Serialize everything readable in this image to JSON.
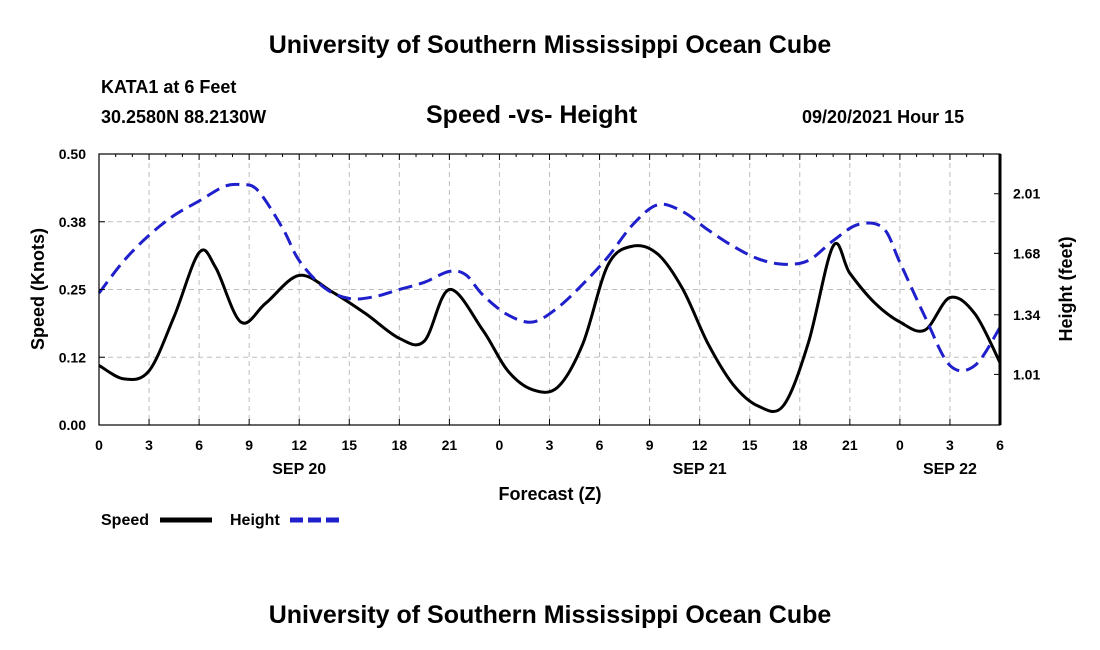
{
  "header": {
    "title": "University of Southern Mississippi Ocean Cube",
    "station": "KATA1 at 6 Feet",
    "coords": "30.2580N  88.2130W",
    "subtitle": "Speed -vs- Height",
    "datetime": "09/20/2021 Hour 15",
    "footer_title": "University of Southern Mississippi Ocean Cube"
  },
  "legend": {
    "speed_label": "Speed",
    "height_label": "Height"
  },
  "colors": {
    "speed": "#000000",
    "height": "#1f1fcc",
    "grid": "#bdbdbd"
  },
  "chart_data": {
    "type": "line",
    "xlabel": "Forecast (Z)",
    "ylabel": "Speed (Knots)",
    "ylabel_right": "Height (feet)",
    "xlim": [
      0,
      54
    ],
    "ylim": [
      0,
      0.5
    ],
    "ylim_right": [
      0.73,
      2.23
    ],
    "x_ticks": [
      "0",
      "3",
      "6",
      "9",
      "12",
      "15",
      "18",
      "21",
      "0",
      "3",
      "6",
      "9",
      "12",
      "15",
      "18",
      "21",
      "0",
      "3",
      "6"
    ],
    "y_ticks": [
      "0.00",
      "0.12",
      "0.25",
      "0.38",
      "0.50"
    ],
    "y_tick_values": [
      0,
      0.125,
      0.25,
      0.375,
      0.5
    ],
    "y_ticks_right": [
      "1.01",
      "1.34",
      "1.68",
      "2.01"
    ],
    "y_tick_values_right": [
      1.01,
      1.34,
      1.68,
      2.01
    ],
    "day_labels": [
      {
        "label": "SEP 20",
        "x": 12
      },
      {
        "label": "SEP 21",
        "x": 36
      },
      {
        "label": "SEP 22",
        "x": 51
      }
    ],
    "series": [
      {
        "name": "Speed",
        "axis": "left",
        "style": "solid",
        "x": [
          0,
          1.5,
          3,
          4.5,
          6,
          7,
          8.5,
          10,
          12,
          14,
          16,
          18,
          19.5,
          21,
          23,
          24.5,
          26,
          27.5,
          29,
          30.5,
          32,
          33.5,
          35,
          36.5,
          38,
          39.5,
          41,
          42.5,
          44,
          45,
          46.5,
          48,
          49.5,
          51,
          52.5,
          54
        ],
        "values": [
          0.11,
          0.085,
          0.1,
          0.2,
          0.318,
          0.29,
          0.19,
          0.225,
          0.276,
          0.245,
          0.205,
          0.16,
          0.155,
          0.25,
          0.175,
          0.1,
          0.065,
          0.07,
          0.15,
          0.295,
          0.33,
          0.315,
          0.25,
          0.15,
          0.075,
          0.035,
          0.035,
          0.15,
          0.33,
          0.28,
          0.225,
          0.19,
          0.175,
          0.235,
          0.205,
          0.115
        ]
      },
      {
        "name": "Height",
        "axis": "right",
        "style": "dashed",
        "x": [
          0,
          1.5,
          3,
          4.5,
          6,
          7.5,
          8.5,
          9.5,
          11,
          12,
          13.5,
          15,
          16.5,
          18,
          19.5,
          21,
          22,
          23,
          24.5,
          26,
          27.5,
          29,
          30.5,
          32,
          33.5,
          35,
          36.5,
          38,
          39.5,
          41,
          42.5,
          44,
          45.5,
          47,
          48,
          49.5,
          51,
          52.5,
          54
        ],
        "values": [
          1.46,
          1.64,
          1.78,
          1.89,
          1.97,
          2.05,
          2.06,
          2.03,
          1.82,
          1.64,
          1.49,
          1.43,
          1.44,
          1.48,
          1.52,
          1.58,
          1.56,
          1.45,
          1.34,
          1.3,
          1.38,
          1.51,
          1.66,
          1.84,
          1.95,
          1.91,
          1.81,
          1.72,
          1.65,
          1.62,
          1.64,
          1.75,
          1.84,
          1.82,
          1.63,
          1.33,
          1.06,
          1.06,
          1.27
        ]
      }
    ]
  }
}
